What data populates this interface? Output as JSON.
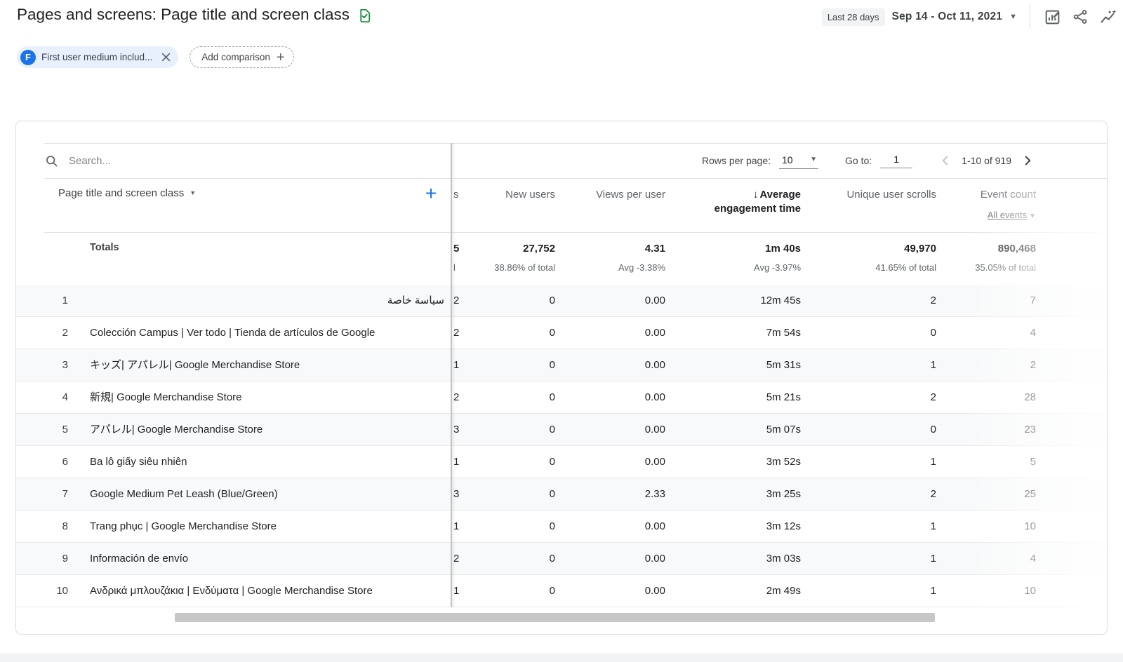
{
  "page": {
    "title": "Pages and screens: Page title and screen class",
    "date_preset": "Last 28 days",
    "date_range": "Sep 14 - Oct 11, 2021"
  },
  "filters": {
    "chip_initial": "F",
    "chip_label": "First user medium includ...",
    "add_comparison": "Add comparison"
  },
  "toolbar": {
    "search_placeholder": "Search...",
    "rows_per_page_label": "Rows per page:",
    "rows_per_page_value": "10",
    "goto_label": "Go to:",
    "goto_value": "1",
    "pagination_range": "1-10 of 919"
  },
  "table": {
    "dimension_header": "Page title and screen class",
    "totals_label": "Totals",
    "clipped_col": {
      "header_fragment": "s",
      "total_value_fragment": "5",
      "total_sub_fragment": "l"
    },
    "columns": {
      "new_users": {
        "label": "New users",
        "total": "27,752",
        "total_sub": "38.86% of total"
      },
      "views_per_user": {
        "label": "Views per user",
        "total": "4.31",
        "total_sub": "Avg -3.38%"
      },
      "avg_engagement": {
        "label": "Average engagement time",
        "sort_arrow": "↓",
        "total": "1m 40s",
        "total_sub": "Avg -3.97%"
      },
      "unique_scrolls": {
        "label": "Unique user scrolls",
        "total": "49,970",
        "total_sub": "41.65% of total"
      },
      "event_count": {
        "label": "Event count",
        "filter_label": "All events",
        "total": "890,468",
        "total_sub": "35.05% of total"
      }
    },
    "rows": [
      {
        "num": "1",
        "title": "سياسة خاصة",
        "users_fragment": "2",
        "new_users": "0",
        "views_per_user": "0.00",
        "avg_engagement": "12m 45s",
        "unique_scrolls": "2",
        "event_count": "7"
      },
      {
        "num": "2",
        "title": "Colección Campus | Ver todo | Tienda de artículos de Google",
        "users_fragment": "2",
        "new_users": "0",
        "views_per_user": "0.00",
        "avg_engagement": "7m 54s",
        "unique_scrolls": "0",
        "event_count": "4"
      },
      {
        "num": "3",
        "title": "キッズ| アパレル| Google Merchandise Store",
        "users_fragment": "1",
        "new_users": "0",
        "views_per_user": "0.00",
        "avg_engagement": "5m 31s",
        "unique_scrolls": "1",
        "event_count": "2"
      },
      {
        "num": "4",
        "title": "新規| Google Merchandise Store",
        "users_fragment": "2",
        "new_users": "0",
        "views_per_user": "0.00",
        "avg_engagement": "5m 21s",
        "unique_scrolls": "2",
        "event_count": "28"
      },
      {
        "num": "5",
        "title": "アパレル| Google Merchandise Store",
        "users_fragment": "3",
        "new_users": "0",
        "views_per_user": "0.00",
        "avg_engagement": "5m 07s",
        "unique_scrolls": "0",
        "event_count": "23"
      },
      {
        "num": "6",
        "title": "Ba lô giấy siêu nhiên",
        "users_fragment": "1",
        "new_users": "0",
        "views_per_user": "0.00",
        "avg_engagement": "3m 52s",
        "unique_scrolls": "1",
        "event_count": "5"
      },
      {
        "num": "7",
        "title": "Google Medium Pet Leash (Blue/Green)",
        "users_fragment": "3",
        "new_users": "0",
        "views_per_user": "2.33",
        "avg_engagement": "3m 25s",
        "unique_scrolls": "2",
        "event_count": "25"
      },
      {
        "num": "8",
        "title": "Trang phục | Google Merchandise Store",
        "users_fragment": "1",
        "new_users": "0",
        "views_per_user": "0.00",
        "avg_engagement": "3m 12s",
        "unique_scrolls": "1",
        "event_count": "10"
      },
      {
        "num": "9",
        "title": "Información de envío",
        "users_fragment": "2",
        "new_users": "0",
        "views_per_user": "0.00",
        "avg_engagement": "3m 03s",
        "unique_scrolls": "1",
        "event_count": "4"
      },
      {
        "num": "10",
        "title": "Ανδρικά μπλουζάκια | Ενδύματα | Google Merchandise Store",
        "users_fragment": "1",
        "new_users": "0",
        "views_per_user": "0.00",
        "avg_engagement": "2m 49s",
        "unique_scrolls": "1",
        "event_count": "10"
      }
    ]
  },
  "colors": {
    "accent_blue": "#1a73e8",
    "chip_bg": "#e8f0fe",
    "icon_green": "#1e8e3e",
    "card_border": "#dadce0"
  }
}
